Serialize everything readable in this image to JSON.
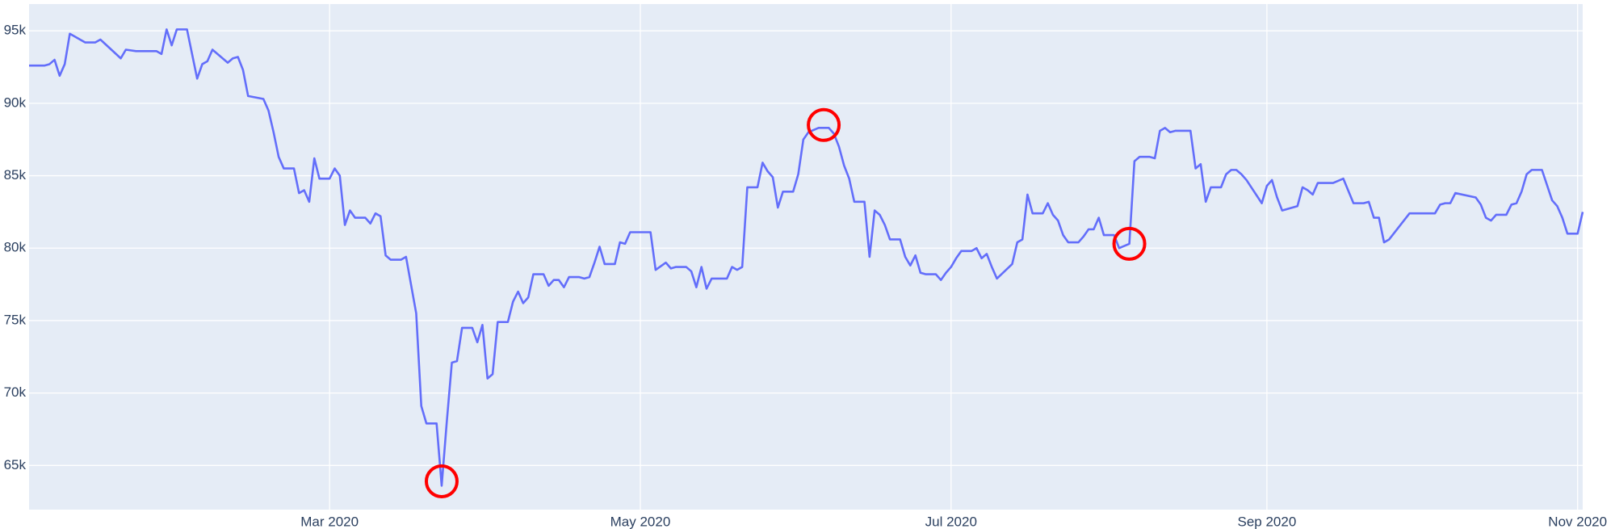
{
  "chart_data": {
    "type": "line",
    "x": [
      "2020-01-02",
      "2020-01-05",
      "2020-01-06",
      "2020-01-07",
      "2020-01-08",
      "2020-01-09",
      "2020-01-10",
      "2020-01-13",
      "2020-01-15",
      "2020-01-16",
      "2020-01-20",
      "2020-01-21",
      "2020-01-23",
      "2020-01-27",
      "2020-01-28",
      "2020-01-29",
      "2020-01-30",
      "2020-01-31",
      "2020-02-02",
      "2020-02-04",
      "2020-02-05",
      "2020-02-06",
      "2020-02-07",
      "2020-02-10",
      "2020-02-11",
      "2020-02-12",
      "2020-02-13",
      "2020-02-14",
      "2020-02-17",
      "2020-02-18",
      "2020-02-19",
      "2020-02-20",
      "2020-02-21",
      "2020-02-23",
      "2020-02-24",
      "2020-02-25",
      "2020-02-26",
      "2020-02-27",
      "2020-02-28",
      "2020-03-01",
      "2020-03-02",
      "2020-03-03",
      "2020-03-04",
      "2020-03-05",
      "2020-03-06",
      "2020-03-08",
      "2020-03-09",
      "2020-03-10",
      "2020-03-11",
      "2020-03-12",
      "2020-03-13",
      "2020-03-15",
      "2020-03-16",
      "2020-03-18",
      "2020-03-19",
      "2020-03-20",
      "2020-03-22",
      "2020-03-23",
      "2020-03-24",
      "2020-03-25",
      "2020-03-26",
      "2020-03-27",
      "2020-03-29",
      "2020-03-30",
      "2020-03-31",
      "2020-04-01",
      "2020-04-02",
      "2020-04-03",
      "2020-04-05",
      "2020-04-06",
      "2020-04-07",
      "2020-04-08",
      "2020-04-09",
      "2020-04-10",
      "2020-04-12",
      "2020-04-13",
      "2020-04-14",
      "2020-04-15",
      "2020-04-16",
      "2020-04-17",
      "2020-04-19",
      "2020-04-20",
      "2020-04-21",
      "2020-04-22",
      "2020-04-23",
      "2020-04-24",
      "2020-04-26",
      "2020-04-27",
      "2020-04-28",
      "2020-04-29",
      "2020-05-03",
      "2020-05-04",
      "2020-05-06",
      "2020-05-07",
      "2020-05-08",
      "2020-05-10",
      "2020-05-11",
      "2020-05-12",
      "2020-05-13",
      "2020-05-14",
      "2020-05-15",
      "2020-05-18",
      "2020-05-19",
      "2020-05-20",
      "2020-05-21",
      "2020-05-22",
      "2020-05-24",
      "2020-05-25",
      "2020-05-26",
      "2020-05-27",
      "2020-05-28",
      "2020-05-29",
      "2020-05-31",
      "2020-06-01",
      "2020-06-02",
      "2020-06-03",
      "2020-06-05",
      "2020-06-07",
      "2020-06-08",
      "2020-06-09",
      "2020-06-10",
      "2020-06-11",
      "2020-06-12",
      "2020-06-14",
      "2020-06-15",
      "2020-06-16",
      "2020-06-17",
      "2020-06-18",
      "2020-06-19",
      "2020-06-21",
      "2020-06-22",
      "2020-06-23",
      "2020-06-24",
      "2020-06-25",
      "2020-06-26",
      "2020-06-28",
      "2020-06-29",
      "2020-06-30",
      "2020-07-01",
      "2020-07-02",
      "2020-07-03",
      "2020-07-05",
      "2020-07-06",
      "2020-07-07",
      "2020-07-08",
      "2020-07-09",
      "2020-07-10",
      "2020-07-13",
      "2020-07-14",
      "2020-07-15",
      "2020-07-16",
      "2020-07-17",
      "2020-07-19",
      "2020-07-20",
      "2020-07-21",
      "2020-07-22",
      "2020-07-23",
      "2020-07-24",
      "2020-07-26",
      "2020-07-27",
      "2020-07-28",
      "2020-07-29",
      "2020-07-30",
      "2020-07-31",
      "2020-08-02",
      "2020-08-03",
      "2020-08-05",
      "2020-08-06",
      "2020-08-07",
      "2020-08-09",
      "2020-08-10",
      "2020-08-11",
      "2020-08-12",
      "2020-08-13",
      "2020-08-14",
      "2020-08-17",
      "2020-08-18",
      "2020-08-19",
      "2020-08-20",
      "2020-08-21",
      "2020-08-23",
      "2020-08-24",
      "2020-08-25",
      "2020-08-26",
      "2020-08-27",
      "2020-08-28",
      "2020-08-31",
      "2020-09-01",
      "2020-09-02",
      "2020-09-03",
      "2020-09-04",
      "2020-09-07",
      "2020-09-08",
      "2020-09-09",
      "2020-09-10",
      "2020-09-11",
      "2020-09-14",
      "2020-09-16",
      "2020-09-18",
      "2020-09-20",
      "2020-09-21",
      "2020-09-22",
      "2020-09-23",
      "2020-09-24",
      "2020-09-25",
      "2020-09-29",
      "2020-10-04",
      "2020-10-05",
      "2020-10-06",
      "2020-10-07",
      "2020-10-08",
      "2020-10-12",
      "2020-10-13",
      "2020-10-14",
      "2020-10-15",
      "2020-10-16",
      "2020-10-18",
      "2020-10-19",
      "2020-10-20",
      "2020-10-21",
      "2020-10-22",
      "2020-10-23",
      "2020-10-25",
      "2020-10-27",
      "2020-10-28",
      "2020-10-29",
      "2020-10-30",
      "2020-11-01",
      "2020-11-02"
    ],
    "series": [
      {
        "color": "#636efa",
        "values": [
          92600,
          92600,
          92700,
          93000,
          91900,
          92700,
          94800,
          94200,
          94200,
          94400,
          93100,
          93700,
          93600,
          93600,
          93400,
          95100,
          94000,
          95100,
          95100,
          91700,
          92700,
          92900,
          93700,
          92800,
          93100,
          93200,
          92300,
          90500,
          90300,
          89500,
          88000,
          86300,
          85500,
          85500,
          83800,
          84000,
          83200,
          86200,
          84800,
          84800,
          85500,
          85000,
          81600,
          82600,
          82100,
          82100,
          81700,
          82400,
          82200,
          79500,
          79200,
          79200,
          79400,
          75500,
          69100,
          67900,
          67900,
          63600,
          68000,
          72100,
          72200,
          74500,
          74500,
          73500,
          74700,
          71000,
          71300,
          74900,
          74900,
          76300,
          77000,
          76200,
          76600,
          78200,
          78200,
          77400,
          77800,
          77800,
          77300,
          78000,
          78000,
          77900,
          78000,
          79000,
          80100,
          78900,
          78900,
          80400,
          80300,
          81100,
          81100,
          78500,
          79000,
          78600,
          78700,
          78700,
          78400,
          77300,
          78700,
          77200,
          77900,
          77900,
          78700,
          78500,
          78700,
          84200,
          84200,
          85900,
          85300,
          84900,
          82800,
          83900,
          83900,
          85100,
          87500,
          88000,
          88300,
          88300,
          87900,
          87000,
          85700,
          84800,
          83200,
          83200,
          79400,
          82600,
          82300,
          81600,
          80600,
          80600,
          79400,
          78800,
          79500,
          78300,
          78200,
          78200,
          77800,
          78300,
          78700,
          79300,
          79800,
          79800,
          80000,
          79300,
          79600,
          78700,
          77900,
          78900,
          80400,
          80600,
          83700,
          82400,
          82400,
          83100,
          82300,
          81900,
          80900,
          80400,
          80400,
          80800,
          81300,
          81300,
          82100,
          80900,
          80900,
          80000,
          80300,
          86000,
          86300,
          86300,
          86200,
          88100,
          88300,
          88000,
          88100,
          88100,
          85500,
          85800,
          83200,
          84200,
          84200,
          85100,
          85400,
          85400,
          85100,
          84700,
          83100,
          84300,
          84700,
          83500,
          82600,
          82900,
          84200,
          84000,
          83700,
          84500,
          84500,
          84800,
          83100,
          83100,
          83200,
          82100,
          82100,
          80400,
          80600,
          82400,
          82400,
          83000,
          83100,
          83100,
          83800,
          83500,
          83000,
          82100,
          81900,
          82300,
          82300,
          83000,
          83100,
          83900,
          85100,
          85400,
          85400,
          83300,
          82900,
          82100,
          81000,
          81000,
          82500
        ]
      }
    ],
    "xlim": [
      "2020-01-02",
      "2020-11-02"
    ],
    "xticks": [
      {
        "value": "2020-03-01",
        "label": "Mar 2020"
      },
      {
        "value": "2020-05-01",
        "label": "May 2020"
      },
      {
        "value": "2020-07-01",
        "label": "Jul 2020"
      },
      {
        "value": "2020-09-01",
        "label": "Sep 2020"
      },
      {
        "value": "2020-11-01",
        "label": "Nov 2020"
      }
    ],
    "ylim": [
      61950,
      96850
    ],
    "yticks": [
      {
        "value": 65000,
        "label": "65k"
      },
      {
        "value": 70000,
        "label": "70k"
      },
      {
        "value": 75000,
        "label": "75k"
      },
      {
        "value": 80000,
        "label": "80k"
      },
      {
        "value": 85000,
        "label": "85k"
      },
      {
        "value": 90000,
        "label": "90k"
      },
      {
        "value": 95000,
        "label": "95k"
      }
    ],
    "grid": true,
    "highlights": {
      "color": "#ff0000",
      "points": [
        {
          "x": "2020-03-23",
          "y": 63900
        },
        {
          "x": "2020-06-06",
          "y": 88500
        },
        {
          "x": "2020-08-05",
          "y": 80300
        }
      ]
    }
  }
}
